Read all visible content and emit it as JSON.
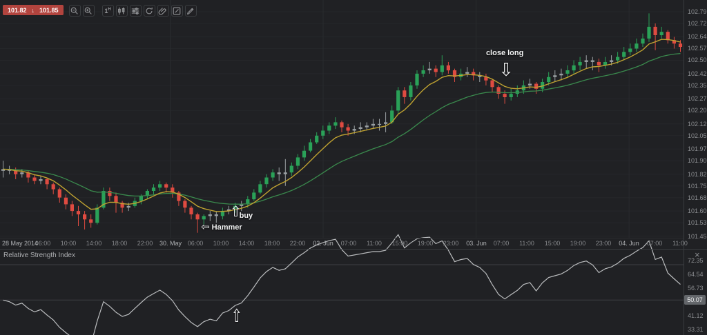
{
  "toolbar": {
    "quote": {
      "sell": "101.82",
      "arrow": "↓",
      "buy": "101.85"
    },
    "buttons": [
      {
        "name": "zoom-out"
      },
      {
        "name": "zoom-in"
      },
      {
        "name": "timeframe",
        "label": "1H"
      },
      {
        "name": "chart-type-candles"
      },
      {
        "name": "indicators"
      },
      {
        "name": "refresh"
      },
      {
        "name": "paperclip"
      },
      {
        "name": "edit"
      },
      {
        "name": "draw"
      }
    ]
  },
  "colors": {
    "background": "#202124",
    "panel_border": "#3a3d40",
    "grid": "#25272a",
    "session_grid": "#292b2e",
    "rsi_grid": "#3e4044",
    "axis_text": "#8c8e91",
    "up": "#2aa158",
    "down": "#df4b41",
    "doji": "#9aa0a3",
    "ma_fast": "#bfa231",
    "ma_slow": "#3a8a4d",
    "rsi_line": "#bbbdbf",
    "quote_badge": "#b2443e",
    "rsi_badge": "#63666a"
  },
  "chart_data": [
    {
      "type": "candlestick",
      "ylim": [
        101.44,
        102.86
      ],
      "price_axis_labels": [
        "102.79",
        "102.72",
        "102.64",
        "102.57",
        "102.50",
        "102.42",
        "102.35",
        "102.27",
        "102.20",
        "102.12",
        "102.05",
        "101.97",
        "101.90",
        "101.82",
        "101.75",
        "101.68",
        "101.60",
        "101.53",
        "101.45"
      ],
      "time_axis_labels": [
        "28 May 2014",
        "06:00",
        "10:00",
        "14:00",
        "18:00",
        "22:00",
        "30. May",
        "06:00",
        "10:00",
        "14:00",
        "18:00",
        "22:00",
        "02. Jun",
        "07:00",
        "11:00",
        "15:00",
        "19:00",
        "23:00",
        "03. Jun",
        "07:00",
        "11:00",
        "15:00",
        "19:00",
        "23:00",
        "04. Jun",
        "07:00",
        "11:00"
      ],
      "date_label_indices": [
        0,
        6,
        12,
        18,
        24
      ],
      "overlays": [
        {
          "name": "fast moving average",
          "period": 7
        },
        {
          "name": "slow moving average",
          "period": 22
        }
      ],
      "candles": [
        [
          101.84,
          101.9,
          101.8,
          101.85
        ],
        [
          101.85,
          101.87,
          101.82,
          101.84
        ],
        [
          101.84,
          101.86,
          101.79,
          101.82
        ],
        [
          101.82,
          101.85,
          101.8,
          101.83
        ],
        [
          101.83,
          101.84,
          101.77,
          101.8
        ],
        [
          101.8,
          101.82,
          101.76,
          101.78
        ],
        [
          101.78,
          101.81,
          101.76,
          101.79
        ],
        [
          101.79,
          101.8,
          101.73,
          101.76
        ],
        [
          101.76,
          101.77,
          101.7,
          101.73
        ],
        [
          101.73,
          101.74,
          101.65,
          101.68
        ],
        [
          101.68,
          101.7,
          101.61,
          101.64
        ],
        [
          101.64,
          101.66,
          101.57,
          101.6
        ],
        [
          101.6,
          101.63,
          101.51,
          101.58
        ],
        [
          101.58,
          101.6,
          101.49,
          101.55
        ],
        [
          101.55,
          101.58,
          101.5,
          101.53
        ],
        [
          101.53,
          101.64,
          101.52,
          101.62
        ],
        [
          101.62,
          101.74,
          101.61,
          101.72
        ],
        [
          101.72,
          101.74,
          101.66,
          101.69
        ],
        [
          101.69,
          101.71,
          101.59,
          101.65
        ],
        [
          101.65,
          101.66,
          101.59,
          101.62
        ],
        [
          101.62,
          101.65,
          101.6,
          101.63
        ],
        [
          101.63,
          101.68,
          101.62,
          101.66
        ],
        [
          101.66,
          101.7,
          101.64,
          101.69
        ],
        [
          101.69,
          101.73,
          101.67,
          101.72
        ],
        [
          101.72,
          101.76,
          101.7,
          101.74
        ],
        [
          101.74,
          101.78,
          101.72,
          101.76
        ],
        [
          101.76,
          101.77,
          101.71,
          101.74
        ],
        [
          101.74,
          101.76,
          101.68,
          101.71
        ],
        [
          101.71,
          101.72,
          101.63,
          101.66
        ],
        [
          101.66,
          101.67,
          101.59,
          101.62
        ],
        [
          101.62,
          101.63,
          101.55,
          101.58
        ],
        [
          101.58,
          101.59,
          101.47,
          101.55
        ],
        [
          101.55,
          101.58,
          101.52,
          101.57
        ],
        [
          101.57,
          101.6,
          101.54,
          101.58
        ],
        [
          101.58,
          101.6,
          101.53,
          101.57
        ],
        [
          101.57,
          101.62,
          101.55,
          101.6
        ],
        [
          101.6,
          101.63,
          101.58,
          101.61
        ],
        [
          101.61,
          101.65,
          101.59,
          101.63
        ],
        [
          101.63,
          101.66,
          101.6,
          101.64
        ],
        [
          101.64,
          101.69,
          101.62,
          101.67
        ],
        [
          101.67,
          101.73,
          101.66,
          101.71
        ],
        [
          101.71,
          101.78,
          101.7,
          101.76
        ],
        [
          101.76,
          101.82,
          101.74,
          101.8
        ],
        [
          101.8,
          101.85,
          101.78,
          101.83
        ],
        [
          101.83,
          101.86,
          101.78,
          101.82
        ],
        [
          101.82,
          101.91,
          101.75,
          101.83
        ],
        [
          101.83,
          101.89,
          101.81,
          101.87
        ],
        [
          101.87,
          101.94,
          101.85,
          101.92
        ],
        [
          101.92,
          101.99,
          101.9,
          101.96
        ],
        [
          101.96,
          102.03,
          101.95,
          102.01
        ],
        [
          102.01,
          102.07,
          102.0,
          102.05
        ],
        [
          102.05,
          102.11,
          102.03,
          102.08
        ],
        [
          102.08,
          102.13,
          102.06,
          102.11
        ],
        [
          102.11,
          102.16,
          102.09,
          102.13
        ],
        [
          102.13,
          102.14,
          102.07,
          102.1
        ],
        [
          102.1,
          102.12,
          102.05,
          102.08
        ],
        [
          102.08,
          102.11,
          102.06,
          102.09
        ],
        [
          102.09,
          102.13,
          102.07,
          102.1
        ],
        [
          102.1,
          102.13,
          102.08,
          102.11
        ],
        [
          102.11,
          102.15,
          102.09,
          102.12
        ],
        [
          102.12,
          102.15,
          102.08,
          102.12
        ],
        [
          102.12,
          102.19,
          102.07,
          102.13
        ],
        [
          102.13,
          102.23,
          102.12,
          102.2
        ],
        [
          102.2,
          102.34,
          102.18,
          102.32
        ],
        [
          102.32,
          102.34,
          102.24,
          102.28
        ],
        [
          102.28,
          102.37,
          102.26,
          102.35
        ],
        [
          102.35,
          102.44,
          102.33,
          102.42
        ],
        [
          102.42,
          102.47,
          102.4,
          102.44
        ],
        [
          102.44,
          102.49,
          102.42,
          102.45
        ],
        [
          102.45,
          102.47,
          102.4,
          102.43
        ],
        [
          102.43,
          102.53,
          102.41,
          102.47
        ],
        [
          102.47,
          102.49,
          102.42,
          102.44
        ],
        [
          102.44,
          102.45,
          102.37,
          102.4
        ],
        [
          102.4,
          102.45,
          102.38,
          102.42
        ],
        [
          102.42,
          102.46,
          102.4,
          102.43
        ],
        [
          102.43,
          102.45,
          102.38,
          102.41
        ],
        [
          102.41,
          102.43,
          102.37,
          102.4
        ],
        [
          102.4,
          102.42,
          102.35,
          102.38
        ],
        [
          102.38,
          102.39,
          102.31,
          102.34
        ],
        [
          102.34,
          102.35,
          102.27,
          102.3
        ],
        [
          102.3,
          102.32,
          102.24,
          102.28
        ],
        [
          102.28,
          102.33,
          102.26,
          102.3
        ],
        [
          102.3,
          102.35,
          102.28,
          102.32
        ],
        [
          102.32,
          102.38,
          102.3,
          102.35
        ],
        [
          102.35,
          102.39,
          102.33,
          102.36
        ],
        [
          102.36,
          102.37,
          102.3,
          102.33
        ],
        [
          102.33,
          102.39,
          102.31,
          102.37
        ],
        [
          102.37,
          102.43,
          102.35,
          102.4
        ],
        [
          102.4,
          102.44,
          102.37,
          102.41
        ],
        [
          102.41,
          102.45,
          102.38,
          102.42
        ],
        [
          102.42,
          102.47,
          102.4,
          102.44
        ],
        [
          102.44,
          102.5,
          102.42,
          102.47
        ],
        [
          102.47,
          102.52,
          102.44,
          102.49
        ],
        [
          102.49,
          102.53,
          102.45,
          102.5
        ],
        [
          102.5,
          102.52,
          102.44,
          102.49
        ],
        [
          102.49,
          102.51,
          102.43,
          102.47
        ],
        [
          102.47,
          102.52,
          102.45,
          102.49
        ],
        [
          102.49,
          102.53,
          102.47,
          102.5
        ],
        [
          102.5,
          102.55,
          102.48,
          102.52
        ],
        [
          102.52,
          102.58,
          102.5,
          102.55
        ],
        [
          102.55,
          102.6,
          102.53,
          102.57
        ],
        [
          102.57,
          102.63,
          102.55,
          102.6
        ],
        [
          102.6,
          102.66,
          102.58,
          102.63
        ],
        [
          102.63,
          102.78,
          102.61,
          102.7
        ],
        [
          102.7,
          102.72,
          102.56,
          102.65
        ],
        [
          102.65,
          102.7,
          102.63,
          102.67
        ],
        [
          102.67,
          102.68,
          102.6,
          102.62
        ],
        [
          102.62,
          102.64,
          102.57,
          102.6
        ],
        [
          102.6,
          102.62,
          102.55,
          102.58
        ]
      ],
      "annotations": [
        {
          "id": "hammer",
          "text": "Hammer",
          "arrow": "⇦",
          "candle_index": 31,
          "price": 101.5
        },
        {
          "id": "buy",
          "text": "buy",
          "arrow": "⇧",
          "candle_index": 37,
          "price": 101.65
        },
        {
          "id": "close-long",
          "text": "close long",
          "arrow": "⇩",
          "candle_index": 80,
          "price": 102.33
        }
      ]
    },
    {
      "type": "line",
      "title": "Relative Strength Index",
      "period": 14,
      "ylim": [
        30.2,
        78.6
      ],
      "axis_labels": [
        "72.35",
        "64.54",
        "56.73",
        "41.12",
        "33.31"
      ],
      "gridlines": [
        70,
        50,
        30
      ],
      "current_value": "50.07",
      "close_button": "×",
      "annotations": [
        {
          "id": "rsi-up-arrow",
          "arrow": "⇧",
          "candle_index": 37
        }
      ]
    }
  ]
}
